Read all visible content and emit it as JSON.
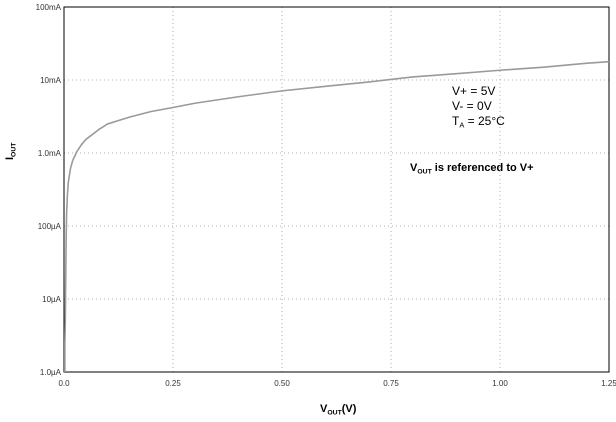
{
  "chart_data": {
    "type": "line",
    "title": "",
    "xlabel": {
      "main": "V",
      "sub": "OUT",
      "suffix": "(V)"
    },
    "ylabel": {
      "main": "I",
      "sub": "OUT"
    },
    "x_ticks": [
      "0.0",
      "0.25",
      "0.50",
      "0.75",
      "1.00",
      "1.25"
    ],
    "xlim": [
      0,
      1.25
    ],
    "y_scale": "log",
    "ylim": [
      1e-06,
      0.1
    ],
    "y_ticks": [
      {
        "value": 0.1,
        "label": "100mA"
      },
      {
        "value": 0.01,
        "label": "10mA"
      },
      {
        "value": 0.001,
        "label": "1.0mA"
      },
      {
        "value": 0.0001,
        "label": "100µA"
      },
      {
        "value": 1e-05,
        "label": "10µA"
      },
      {
        "value": 1e-06,
        "label": "1.0µA"
      }
    ],
    "grid": "dotted",
    "series": [
      {
        "line_color": "#9a9a9a",
        "x": [
          0.002,
          0.003,
          0.004,
          0.005,
          0.006,
          0.008,
          0.01,
          0.015,
          0.02,
          0.03,
          0.04,
          0.05,
          0.06,
          0.08,
          0.1,
          0.15,
          0.2,
          0.25,
          0.3,
          0.4,
          0.5,
          0.6,
          0.7,
          0.8,
          0.9,
          1.0,
          1.1,
          1.2,
          1.25
        ],
        "y": [
          2.5e-06,
          5e-06,
          2e-05,
          7e-05,
          0.00015,
          0.00028,
          0.0004,
          0.00062,
          0.00079,
          0.00106,
          0.0013,
          0.00153,
          0.0017,
          0.0021,
          0.0025,
          0.0031,
          0.0037,
          0.0042,
          0.0048,
          0.0059,
          0.0071,
          0.0082,
          0.0094,
          0.011,
          0.0122,
          0.0136,
          0.015,
          0.017,
          0.0178
        ]
      }
    ],
    "annotations": {
      "conditions": {
        "vplus": "V+ = 5V",
        "vminus": "V- = 0V",
        "ta_main": "T",
        "ta_sub": "A",
        "ta_rest": " = 25°C"
      },
      "note": {
        "main": "V",
        "sub": "OUT",
        "rest": " is referenced to V+"
      }
    }
  }
}
